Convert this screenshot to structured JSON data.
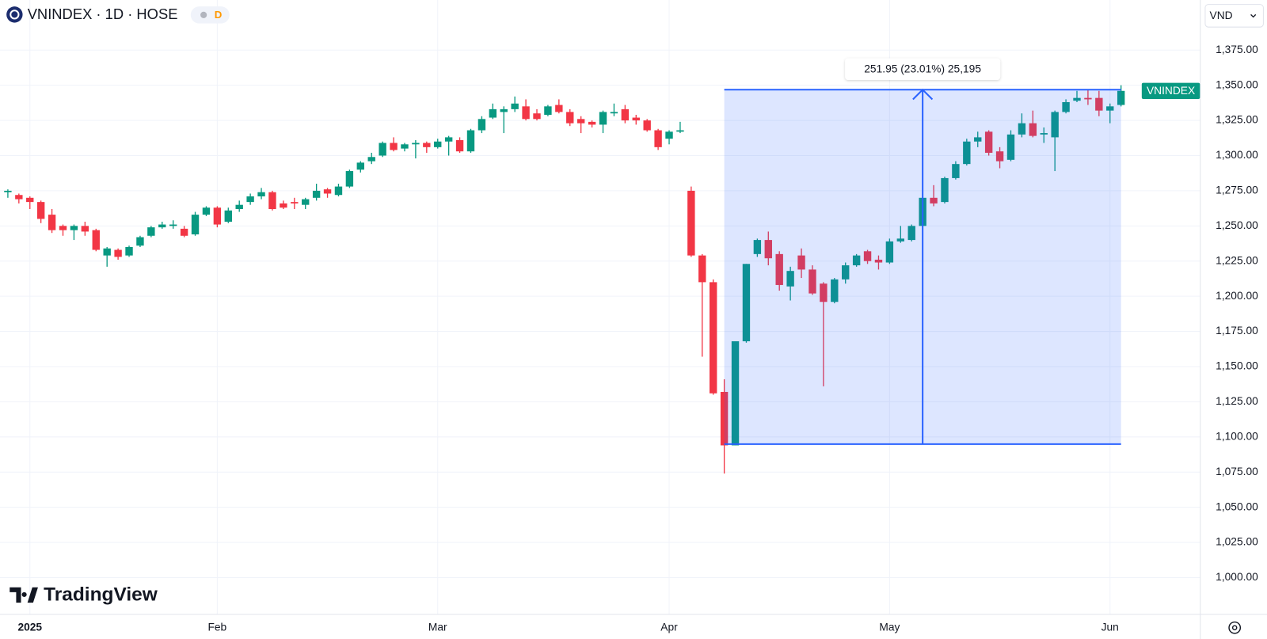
{
  "chart_data": {
    "type": "candlestick",
    "title": "VNINDEX · 1D · HOSE",
    "interval_badge": "D",
    "currency": "VND",
    "price_tag": "VNINDEX",
    "watermark": "TradingView",
    "up_color": "#089981",
    "down_color": "#f23645",
    "grid": true,
    "categories": [
      null,
      null,
      "2025",
      null,
      null,
      null,
      null,
      null,
      null,
      null,
      null,
      null,
      null,
      null,
      null,
      null,
      null,
      null,
      null,
      "Feb",
      null,
      null,
      null,
      null,
      null,
      null,
      null,
      null,
      null,
      null,
      null,
      null,
      null,
      null,
      null,
      null,
      null,
      null,
      null,
      "Mar",
      null,
      null,
      null,
      null,
      null,
      null,
      null,
      null,
      null,
      null,
      null,
      null,
      null,
      null,
      null,
      null,
      null,
      null,
      null,
      null,
      "Apr",
      null,
      null,
      null,
      null,
      null,
      null,
      null,
      null,
      null,
      null,
      null,
      null,
      null,
      null,
      null,
      null,
      null,
      null,
      null,
      "May",
      null,
      null,
      null,
      null,
      null,
      null,
      null,
      null,
      null,
      null,
      null,
      null,
      null,
      null,
      null,
      null,
      null,
      null,
      null,
      "Jun",
      null
    ],
    "open": [
      1274,
      1272,
      1270,
      1267,
      1258,
      1250,
      1247,
      1250,
      1247,
      1229,
      1233,
      1229,
      1236,
      1243,
      1249,
      1250,
      1248,
      1244,
      1258,
      1263,
      1253,
      1262,
      1267,
      1271,
      1274,
      1266,
      1267,
      1265,
      1270,
      1276,
      1272,
      1278,
      1290,
      1296,
      1300,
      1309,
      1305,
      1308,
      1309,
      1306,
      1310,
      1311,
      1303,
      1318,
      1327,
      1331,
      1333,
      1335,
      1330,
      1329,
      1336,
      1331,
      1326,
      1324,
      1322,
      1330,
      1333,
      1327,
      1325,
      1318,
      1312,
      1317,
      1275,
      1229,
      1210,
      1132,
      1094,
      1168,
      1230,
      1240,
      1230,
      1207,
      1229,
      1219,
      1209,
      1196,
      1212,
      1222,
      1232,
      1226,
      1224,
      1239,
      1240,
      1250,
      1270,
      1267,
      1284,
      1294,
      1310,
      1317,
      1303,
      1297,
      1315,
      1323,
      1315,
      1313,
      1331,
      1339,
      1341,
      1341,
      1332,
      1336
    ],
    "high": [
      1276,
      1273,
      1271,
      1268,
      1262,
      1251,
      1251,
      1253,
      1248,
      1235,
      1234,
      1236,
      1243,
      1250,
      1253,
      1254,
      1250,
      1260,
      1264,
      1264,
      1263,
      1268,
      1273,
      1277,
      1275,
      1268,
      1270,
      1270,
      1280,
      1277,
      1280,
      1290,
      1296,
      1302,
      1310,
      1313,
      1309,
      1311,
      1310,
      1312,
      1314,
      1313,
      1319,
      1328,
      1337,
      1335,
      1342,
      1340,
      1333,
      1336,
      1340,
      1333,
      1328,
      1325,
      1332,
      1337,
      1336,
      1329,
      1326,
      1319,
      1318,
      1324,
      1278,
      1230,
      1212,
      1141,
      1168,
      1223,
      1241,
      1246,
      1232,
      1221,
      1234,
      1222,
      1210,
      1213,
      1224,
      1230,
      1233,
      1229,
      1241,
      1250,
      1251,
      1271,
      1279,
      1285,
      1296,
      1312,
      1317,
      1318,
      1306,
      1318,
      1330,
      1332,
      1320,
      1332,
      1340,
      1346,
      1347,
      1346,
      1337,
      1350
    ],
    "low": [
      1270,
      1266,
      1262,
      1252,
      1245,
      1243,
      1240,
      1243,
      1232,
      1221,
      1226,
      1228,
      1235,
      1242,
      1248,
      1248,
      1242,
      1243,
      1257,
      1249,
      1252,
      1260,
      1265,
      1269,
      1261,
      1262,
      1262,
      1262,
      1268,
      1270,
      1271,
      1277,
      1288,
      1294,
      1299,
      1303,
      1303,
      1298,
      1302,
      1305,
      1300,
      1302,
      1302,
      1316,
      1326,
      1316,
      1331,
      1325,
      1325,
      1328,
      1330,
      1321,
      1316,
      1320,
      1316,
      1328,
      1323,
      1322,
      1317,
      1304,
      1308,
      1316,
      1228,
      1157,
      1130,
      1074,
      1094,
      1167,
      1228,
      1222,
      1204,
      1197,
      1213,
      1201,
      1136,
      1195,
      1209,
      1221,
      1223,
      1219,
      1223,
      1238,
      1239,
      1249,
      1264,
      1266,
      1283,
      1293,
      1306,
      1300,
      1291,
      1296,
      1313,
      1313,
      1309,
      1289,
      1330,
      1338,
      1336,
      1328,
      1323,
      1335
    ],
    "close": [
      1275,
      1269,
      1267,
      1255,
      1247,
      1247,
      1250,
      1246,
      1233,
      1234,
      1228,
      1235,
      1242,
      1249,
      1251,
      1251,
      1243,
      1258,
      1263,
      1251,
      1261,
      1265,
      1271,
      1274,
      1262,
      1263,
      1266,
      1269,
      1275,
      1273,
      1278,
      1289,
      1295,
      1299,
      1309,
      1304,
      1308,
      1309,
      1306,
      1310,
      1313,
      1303,
      1318,
      1326,
      1333,
      1333,
      1337,
      1326,
      1326,
      1335,
      1331,
      1323,
      1323,
      1322,
      1331,
      1331,
      1325,
      1325,
      1318,
      1306,
      1317,
      1318,
      1229,
      1210,
      1131,
      1094,
      1168,
      1223,
      1240,
      1227,
      1208,
      1218,
      1219,
      1202,
      1196,
      1212,
      1222,
      1229,
      1225,
      1224,
      1239,
      1241,
      1250,
      1270,
      1266,
      1284,
      1294,
      1310,
      1313,
      1302,
      1296,
      1315,
      1323,
      1314,
      1316,
      1331,
      1338,
      1341,
      1340,
      1332,
      1335,
      1346
    ],
    "ylim": [
      974.16,
      1410.61
    ],
    "yticks": [
      {
        "value": 1000,
        "label": "1,000.00"
      },
      {
        "value": 1025,
        "label": "1,025.00"
      },
      {
        "value": 1050,
        "label": "1,050.00"
      },
      {
        "value": 1075,
        "label": "1,075.00"
      },
      {
        "value": 1100,
        "label": "1,100.00"
      },
      {
        "value": 1125,
        "label": "1,125.00"
      },
      {
        "value": 1150,
        "label": "1,150.00"
      },
      {
        "value": 1175,
        "label": "1,175.00"
      },
      {
        "value": 1200,
        "label": "1,200.00"
      },
      {
        "value": 1225,
        "label": "1,225.00"
      },
      {
        "value": 1250,
        "label": "1,250.00"
      },
      {
        "value": 1275,
        "label": "1,275.00"
      },
      {
        "value": 1300,
        "label": "1,300.00"
      },
      {
        "value": 1325,
        "label": "1,325.00"
      },
      {
        "value": 1350,
        "label": "1,350.00"
      },
      {
        "value": 1375,
        "label": "1,375.00"
      }
    ],
    "range": {
      "label": "251.95 (23.01%) 25,195",
      "low": 1094.9,
      "high": 1346.85,
      "start": 65,
      "end": 101
    }
  }
}
